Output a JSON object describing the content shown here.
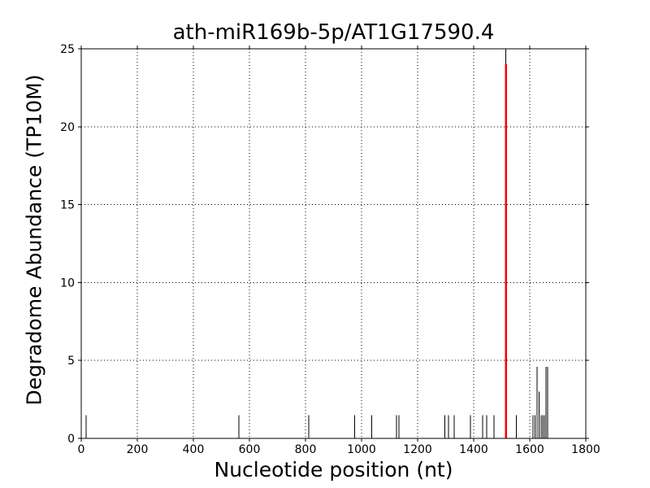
{
  "figure": {
    "background": "#ffffff",
    "frame_color": "#000000"
  },
  "chart_data": {
    "type": "stem",
    "title": "ath-miR169b-5p/AT1G17590.4",
    "xlabel": "Nucleotide position (nt)",
    "ylabel": "Degradome Abundance (TP10M)",
    "xlim": [
      0,
      1800
    ],
    "ylim": [
      0,
      25
    ],
    "xticks": [
      0,
      200,
      400,
      600,
      800,
      1000,
      1200,
      1400,
      1600,
      1800
    ],
    "yticks": [
      0,
      5,
      10,
      15,
      20,
      25
    ],
    "grid": {
      "visible": true,
      "style": "dotted",
      "color": "#000000"
    },
    "series": [
      {
        "name": "degradome-peaks",
        "color": "#000000",
        "points": [
          [
            18,
            1.5
          ],
          [
            562,
            1.5
          ],
          [
            811,
            1.5
          ],
          [
            975,
            1.5
          ],
          [
            1036,
            1.5
          ],
          [
            1124,
            1.5
          ],
          [
            1133,
            1.5
          ],
          [
            1297,
            1.5
          ],
          [
            1310,
            1.5
          ],
          [
            1330,
            1.5
          ],
          [
            1389,
            1.5
          ],
          [
            1432,
            1.5
          ],
          [
            1446,
            1.5
          ],
          [
            1473,
            1.5
          ],
          [
            1514,
            25
          ],
          [
            1552,
            1.5
          ],
          [
            1612,
            1.5
          ],
          [
            1619,
            1.5
          ],
          [
            1626,
            4.6
          ],
          [
            1633,
            3.0
          ],
          [
            1640,
            1.5
          ],
          [
            1646,
            1.5
          ],
          [
            1652,
            1.5
          ],
          [
            1658,
            4.6
          ],
          [
            1664,
            4.6
          ]
        ]
      }
    ],
    "cleavage_site": {
      "position": 1515,
      "value": 24,
      "color": "#ff0000"
    }
  }
}
